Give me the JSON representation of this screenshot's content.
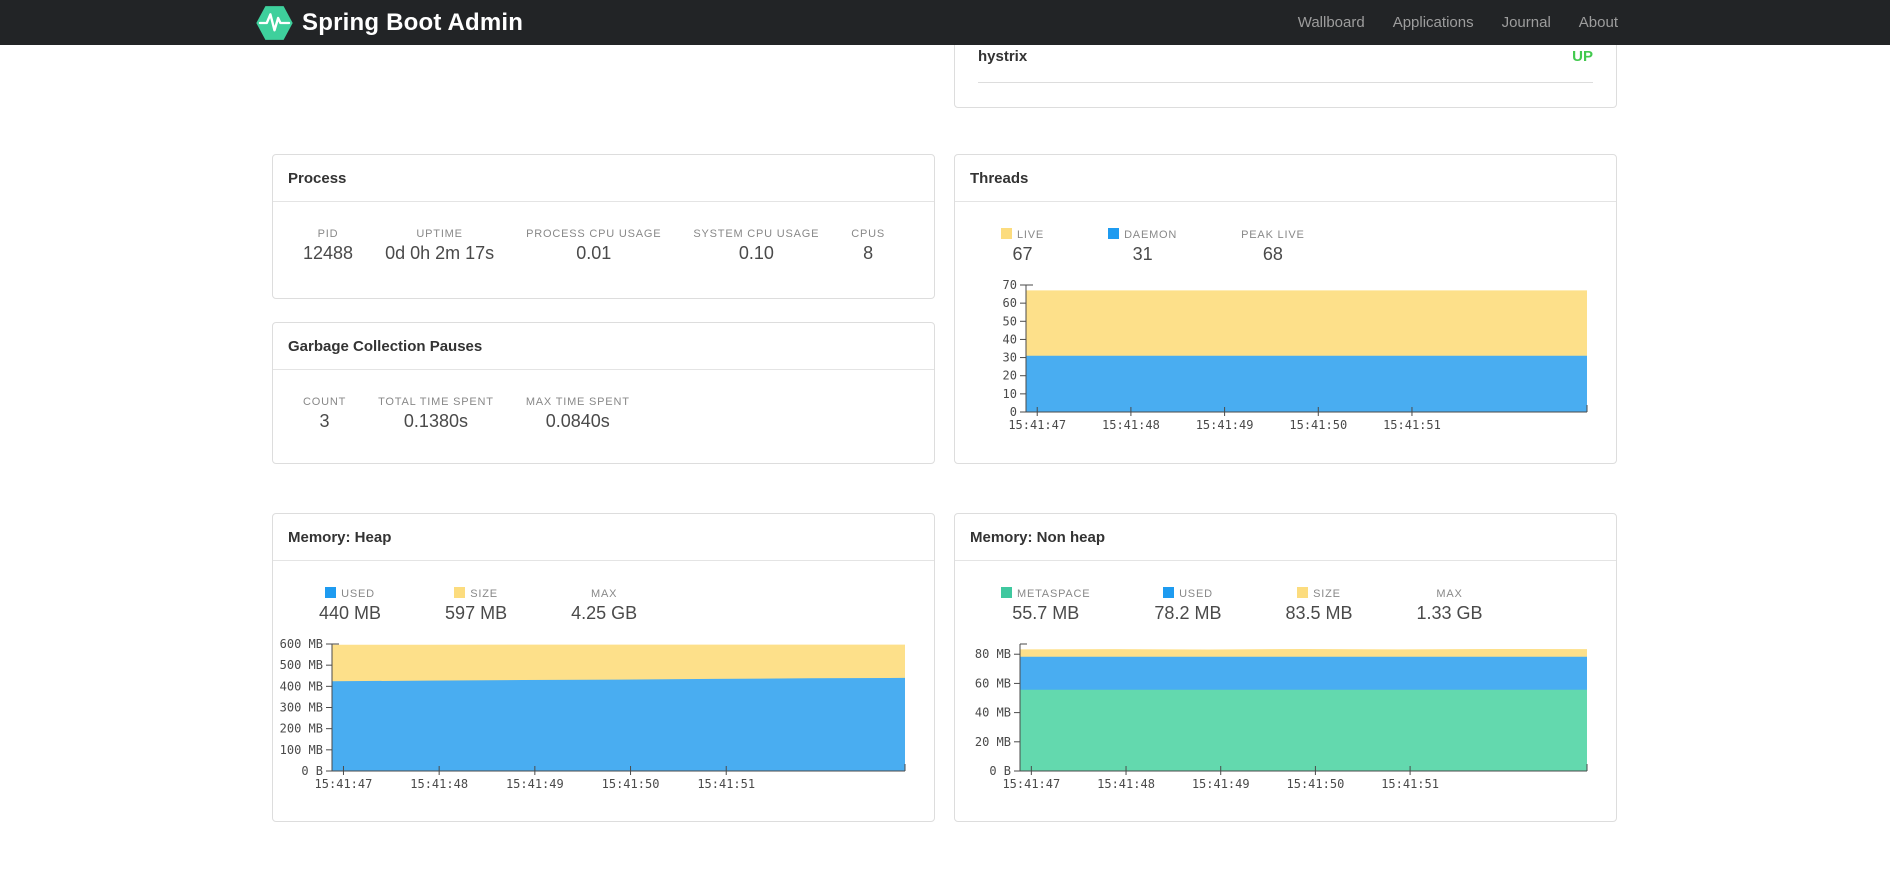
{
  "navbar": {
    "brand": "Spring Boot Admin",
    "items": [
      {
        "label": "Wallboard"
      },
      {
        "label": "Applications"
      },
      {
        "label": "Journal"
      },
      {
        "label": "About"
      }
    ],
    "bg_color": "#222426",
    "link_color": "#9d9d9d",
    "logo_color": "#3ed09c"
  },
  "application_panel": {
    "name": "hystrix",
    "status": "UP",
    "status_color": "#42c94e"
  },
  "panels": {
    "process": {
      "title": "Process",
      "metrics": [
        {
          "label": "PID",
          "value": "12488"
        },
        {
          "label": "UPTIME",
          "value": "0d 0h 2m 17s"
        },
        {
          "label": "PROCESS CPU USAGE",
          "value": "0.01"
        },
        {
          "label": "SYSTEM CPU USAGE",
          "value": "0.10"
        },
        {
          "label": "CPUS",
          "value": "8"
        }
      ]
    },
    "gc": {
      "title": "Garbage Collection Pauses",
      "metrics": [
        {
          "label": "COUNT",
          "value": "3"
        },
        {
          "label": "TOTAL TIME SPENT",
          "value": "0.1380s"
        },
        {
          "label": "MAX TIME SPENT",
          "value": "0.0840s"
        }
      ]
    },
    "threads": {
      "title": "Threads",
      "metrics": [
        {
          "label": "LIVE",
          "value": "67",
          "swatch": "#fcdc7e"
        },
        {
          "label": "DAEMON",
          "value": "31",
          "swatch": "#1e9bf0"
        },
        {
          "label": "PEAK LIVE",
          "value": "68"
        }
      ]
    },
    "heap": {
      "title": "Memory: Heap",
      "metrics": [
        {
          "label": "USED",
          "value": "440 MB",
          "swatch": "#1e9bf0"
        },
        {
          "label": "SIZE",
          "value": "597 MB",
          "swatch": "#fcdc7e"
        },
        {
          "label": "MAX",
          "value": "4.25 GB"
        }
      ]
    },
    "nonheap": {
      "title": "Memory: Non heap",
      "metrics": [
        {
          "label": "METASPACE",
          "value": "55.7 MB",
          "swatch": "#3fc89f"
        },
        {
          "label": "USED",
          "value": "78.2 MB",
          "swatch": "#1e9bf0"
        },
        {
          "label": "SIZE",
          "value": "83.5 MB",
          "swatch": "#fcdc7e"
        },
        {
          "label": "MAX",
          "value": "1.33 GB"
        }
      ]
    }
  },
  "chart_data": [
    {
      "id": "threads",
      "type": "area",
      "title": "Threads over time",
      "x_tick_labels": [
        "15:41:47",
        "15:41:48",
        "15:41:49",
        "15:41:50",
        "15:41:51"
      ],
      "y_max": 70,
      "y_ticks": [
        {
          "v": 0,
          "label": "0"
        },
        {
          "v": 10,
          "label": "10"
        },
        {
          "v": 20,
          "label": "20"
        },
        {
          "v": 30,
          "label": "30"
        },
        {
          "v": 40,
          "label": "40"
        },
        {
          "v": 50,
          "label": "50"
        },
        {
          "v": 60,
          "label": "60"
        },
        {
          "v": 70,
          "label": "70"
        }
      ],
      "grid": false,
      "legend_position": "top",
      "series": [
        {
          "name": "LIVE",
          "color": "#fde08a",
          "values": [
            67,
            67,
            67,
            67,
            67,
            67,
            67
          ]
        },
        {
          "name": "DAEMON",
          "color": "#49adf1",
          "values": [
            31,
            31,
            31,
            31,
            31,
            31,
            31
          ]
        }
      ]
    },
    {
      "id": "heap",
      "type": "area",
      "title": "Heap memory over time (MB)",
      "x_tick_labels": [
        "15:41:47",
        "15:41:48",
        "15:41:49",
        "15:41:50",
        "15:41:51"
      ],
      "y_max": 600,
      "y_ticks": [
        {
          "v": 0,
          "label": "0 B"
        },
        {
          "v": 100,
          "label": "100 MB"
        },
        {
          "v": 200,
          "label": "200 MB"
        },
        {
          "v": 300,
          "label": "300 MB"
        },
        {
          "v": 400,
          "label": "400 MB"
        },
        {
          "v": 500,
          "label": "500 MB"
        },
        {
          "v": 600,
          "label": "600 MB"
        }
      ],
      "grid": false,
      "legend_position": "top",
      "series": [
        {
          "name": "SIZE",
          "color": "#fde08a",
          "values": [
            596,
            596,
            597,
            597,
            597,
            597,
            597
          ]
        },
        {
          "name": "USED",
          "color": "#49adf1",
          "values": [
            424,
            427,
            430,
            432,
            435,
            438,
            440
          ]
        }
      ]
    },
    {
      "id": "nonheap",
      "type": "area",
      "title": "Non heap memory over time (MB)",
      "x_tick_labels": [
        "15:41:47",
        "15:41:48",
        "15:41:49",
        "15:41:50",
        "15:41:51"
      ],
      "y_max": 87,
      "y_ticks": [
        {
          "v": 0,
          "label": "0 B"
        },
        {
          "v": 20,
          "label": "20 MB"
        },
        {
          "v": 40,
          "label": "40 MB"
        },
        {
          "v": 60,
          "label": "60 MB"
        },
        {
          "v": 80,
          "label": "80 MB"
        }
      ],
      "grid": false,
      "legend_position": "top",
      "series": [
        {
          "name": "SIZE",
          "color": "#fde08a",
          "values": [
            83.3,
            83.5,
            83.2,
            83.6,
            83.3,
            83.6,
            83.5
          ]
        },
        {
          "name": "USED",
          "color": "#49adf1",
          "values": [
            78.2,
            78.2,
            78.2,
            78.2,
            78.2,
            78.2,
            78.2
          ]
        },
        {
          "name": "METASPACE",
          "color": "#63d9ae",
          "values": [
            55.6,
            55.6,
            55.7,
            55.7,
            55.7,
            55.7,
            55.7
          ]
        }
      ]
    }
  ],
  "chart_axis": {
    "line_color": "#4a4a4a",
    "text_color": "#4a4a4a"
  }
}
